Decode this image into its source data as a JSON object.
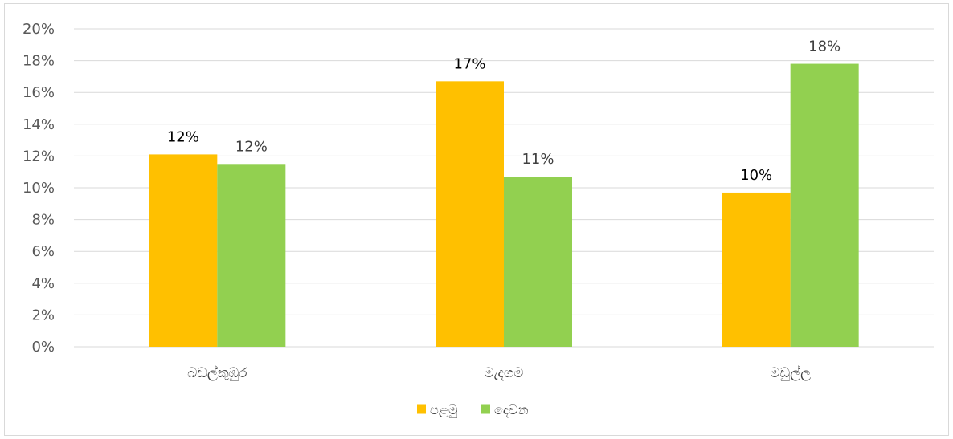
{
  "chart_data": {
    "type": "bar",
    "categories": [
      "බඩල්කුඹුර",
      "මැදගම",
      "මඩුල්ල"
    ],
    "series": [
      {
        "name": "පළමු",
        "color": "#FFC000",
        "values": [
          12.1,
          16.7,
          9.7
        ],
        "labels": [
          "12%",
          "17%",
          "10%"
        ],
        "label_color": "#000000"
      },
      {
        "name": "දෙවන",
        "color": "#92D050",
        "values": [
          11.5,
          10.7,
          17.8
        ],
        "labels": [
          "12%",
          "11%",
          "18%"
        ],
        "label_color": "#404040"
      }
    ],
    "ylim": [
      0,
      20
    ],
    "yticks": [
      "0%",
      "2%",
      "4%",
      "6%",
      "8%",
      "10%",
      "12%",
      "14%",
      "16%",
      "18%",
      "20%"
    ],
    "grid": true,
    "gridline_color": "#d9d9d9",
    "legend_position": "bottom",
    "title": "",
    "xlabel": "",
    "ylabel": ""
  }
}
